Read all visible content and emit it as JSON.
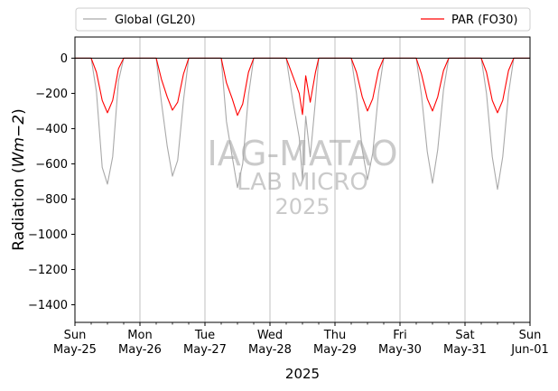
{
  "chart_data": {
    "type": "line",
    "xlabel": "2025",
    "ylabel_main": "Radiation (",
    "ylabel_math": "Wm",
    "ylabel_math_tail": "−2",
    "ylabel_close": ")",
    "ylim": [
      -1500,
      120
    ],
    "yticks": [
      0,
      -200,
      -400,
      -600,
      -800,
      -1000,
      -1200,
      -1400
    ],
    "ytick_labels": [
      "0",
      "−200",
      "−400",
      "−600",
      "−800",
      "−1000",
      "−1200",
      "−1400"
    ],
    "x_range_days": [
      0,
      7
    ],
    "xticks": [
      {
        "day": "Sun",
        "date": "May-25"
      },
      {
        "day": "Mon",
        "date": "May-26"
      },
      {
        "day": "Tue",
        "date": "May-27"
      },
      {
        "day": "Wed",
        "date": "May-28"
      },
      {
        "day": "Thu",
        "date": "May-29"
      },
      {
        "day": "Fri",
        "date": "May-30"
      },
      {
        "day": "Sat",
        "date": "May-31"
      },
      {
        "day": "Sun",
        "date": "Jun-01"
      }
    ],
    "grid": "vertical-major",
    "legend_position": "above-plot",
    "zero_line": true,
    "series": [
      {
        "name": "Global (GL20)",
        "color": "#a9a9a9",
        "daily_peaks": [
          -715,
          -670,
          -735,
          -690,
          -690,
          -710,
          -745
        ],
        "sample_points": [
          [
            0.0,
            0
          ],
          [
            0.25,
            0
          ],
          [
            0.33,
            -190
          ],
          [
            0.42,
            -620
          ],
          [
            0.5,
            -715
          ],
          [
            0.58,
            -560
          ],
          [
            0.67,
            -130
          ],
          [
            0.75,
            0
          ],
          [
            1.25,
            0
          ],
          [
            1.33,
            -250
          ],
          [
            1.42,
            -500
          ],
          [
            1.5,
            -670
          ],
          [
            1.58,
            -580
          ],
          [
            1.67,
            -240
          ],
          [
            1.75,
            0
          ],
          [
            2.25,
            0
          ],
          [
            2.33,
            -360
          ],
          [
            2.42,
            -560
          ],
          [
            2.5,
            -735
          ],
          [
            2.58,
            -600
          ],
          [
            2.67,
            -210
          ],
          [
            2.75,
            0
          ],
          [
            3.25,
            0
          ],
          [
            3.35,
            -240
          ],
          [
            3.45,
            -450
          ],
          [
            3.5,
            -690
          ],
          [
            3.55,
            -330
          ],
          [
            3.62,
            -560
          ],
          [
            3.7,
            -240
          ],
          [
            3.75,
            0
          ],
          [
            4.25,
            0
          ],
          [
            4.33,
            -200
          ],
          [
            4.42,
            -520
          ],
          [
            4.5,
            -690
          ],
          [
            4.58,
            -540
          ],
          [
            4.67,
            -200
          ],
          [
            4.75,
            0
          ],
          [
            5.25,
            0
          ],
          [
            5.33,
            -210
          ],
          [
            5.42,
            -530
          ],
          [
            5.5,
            -710
          ],
          [
            5.58,
            -520
          ],
          [
            5.67,
            -180
          ],
          [
            5.75,
            0
          ],
          [
            6.25,
            0
          ],
          [
            6.33,
            -200
          ],
          [
            6.42,
            -560
          ],
          [
            6.5,
            -745
          ],
          [
            6.58,
            -560
          ],
          [
            6.67,
            -200
          ],
          [
            6.75,
            0
          ],
          [
            7.0,
            0
          ]
        ]
      },
      {
        "name": "PAR (FO30)",
        "color": "#ff0000",
        "daily_peaks": [
          -310,
          -295,
          -325,
          -320,
          -300,
          -300,
          -310
        ],
        "sample_points": [
          [
            0.0,
            0
          ],
          [
            0.25,
            0
          ],
          [
            0.33,
            -80
          ],
          [
            0.42,
            -240
          ],
          [
            0.5,
            -310
          ],
          [
            0.58,
            -240
          ],
          [
            0.67,
            -60
          ],
          [
            0.75,
            0
          ],
          [
            1.25,
            0
          ],
          [
            1.33,
            -120
          ],
          [
            1.42,
            -220
          ],
          [
            1.5,
            -295
          ],
          [
            1.58,
            -250
          ],
          [
            1.67,
            -90
          ],
          [
            1.75,
            0
          ],
          [
            2.25,
            0
          ],
          [
            2.33,
            -140
          ],
          [
            2.42,
            -230
          ],
          [
            2.5,
            -325
          ],
          [
            2.58,
            -260
          ],
          [
            2.67,
            -80
          ],
          [
            2.75,
            0
          ],
          [
            3.25,
            0
          ],
          [
            3.35,
            -100
          ],
          [
            3.45,
            -200
          ],
          [
            3.5,
            -320
          ],
          [
            3.55,
            -100
          ],
          [
            3.62,
            -250
          ],
          [
            3.7,
            -80
          ],
          [
            3.75,
            0
          ],
          [
            4.25,
            0
          ],
          [
            4.33,
            -80
          ],
          [
            4.42,
            -220
          ],
          [
            4.5,
            -300
          ],
          [
            4.58,
            -230
          ],
          [
            4.67,
            -70
          ],
          [
            4.75,
            0
          ],
          [
            5.25,
            0
          ],
          [
            5.33,
            -90
          ],
          [
            5.42,
            -230
          ],
          [
            5.5,
            -300
          ],
          [
            5.58,
            -220
          ],
          [
            5.67,
            -70
          ],
          [
            5.75,
            0
          ],
          [
            6.25,
            0
          ],
          [
            6.33,
            -80
          ],
          [
            6.42,
            -240
          ],
          [
            6.5,
            -310
          ],
          [
            6.58,
            -240
          ],
          [
            6.67,
            -70
          ],
          [
            6.75,
            0
          ],
          [
            7.0,
            0
          ]
        ]
      }
    ],
    "watermark": [
      "IAG-MATAO",
      "LAB MICRO",
      "2025"
    ]
  }
}
